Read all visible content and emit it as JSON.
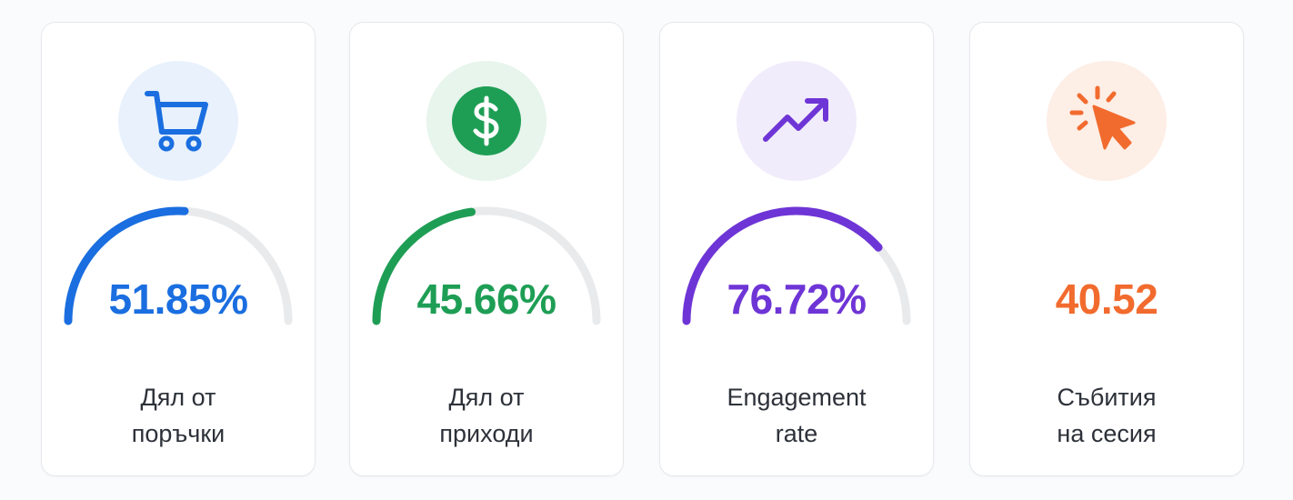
{
  "colors": {
    "blue": "#1a6ee0",
    "green": "#1e9e55",
    "purple": "#6e35d6",
    "orange": "#f26b2e",
    "track": "#e9eaec"
  },
  "cards": [
    {
      "icon": "shopping-cart-icon",
      "value": "51.85%",
      "progress": 0.5185,
      "label_line1": "Дял от",
      "label_line2": "поръчки",
      "accent": "#1a6ee0",
      "icon_bg": "#e8f1fc"
    },
    {
      "icon": "dollar-icon",
      "value": "45.66%",
      "progress": 0.4566,
      "label_line1": "Дял от",
      "label_line2": "приходи",
      "accent": "#1e9e55",
      "icon_bg": "#e7f5ec"
    },
    {
      "icon": "trending-up-icon",
      "value": "76.72%",
      "progress": 0.7672,
      "label_line1": "Engagement",
      "label_line2": "rate",
      "accent": "#6e35d6",
      "icon_bg": "#f1ecfb"
    },
    {
      "icon": "cursor-click-icon",
      "value": "40.52",
      "label_line1": "Събития",
      "label_line2": "на сесия",
      "accent": "#f26b2e",
      "icon_bg": "#fdeee6"
    }
  ]
}
